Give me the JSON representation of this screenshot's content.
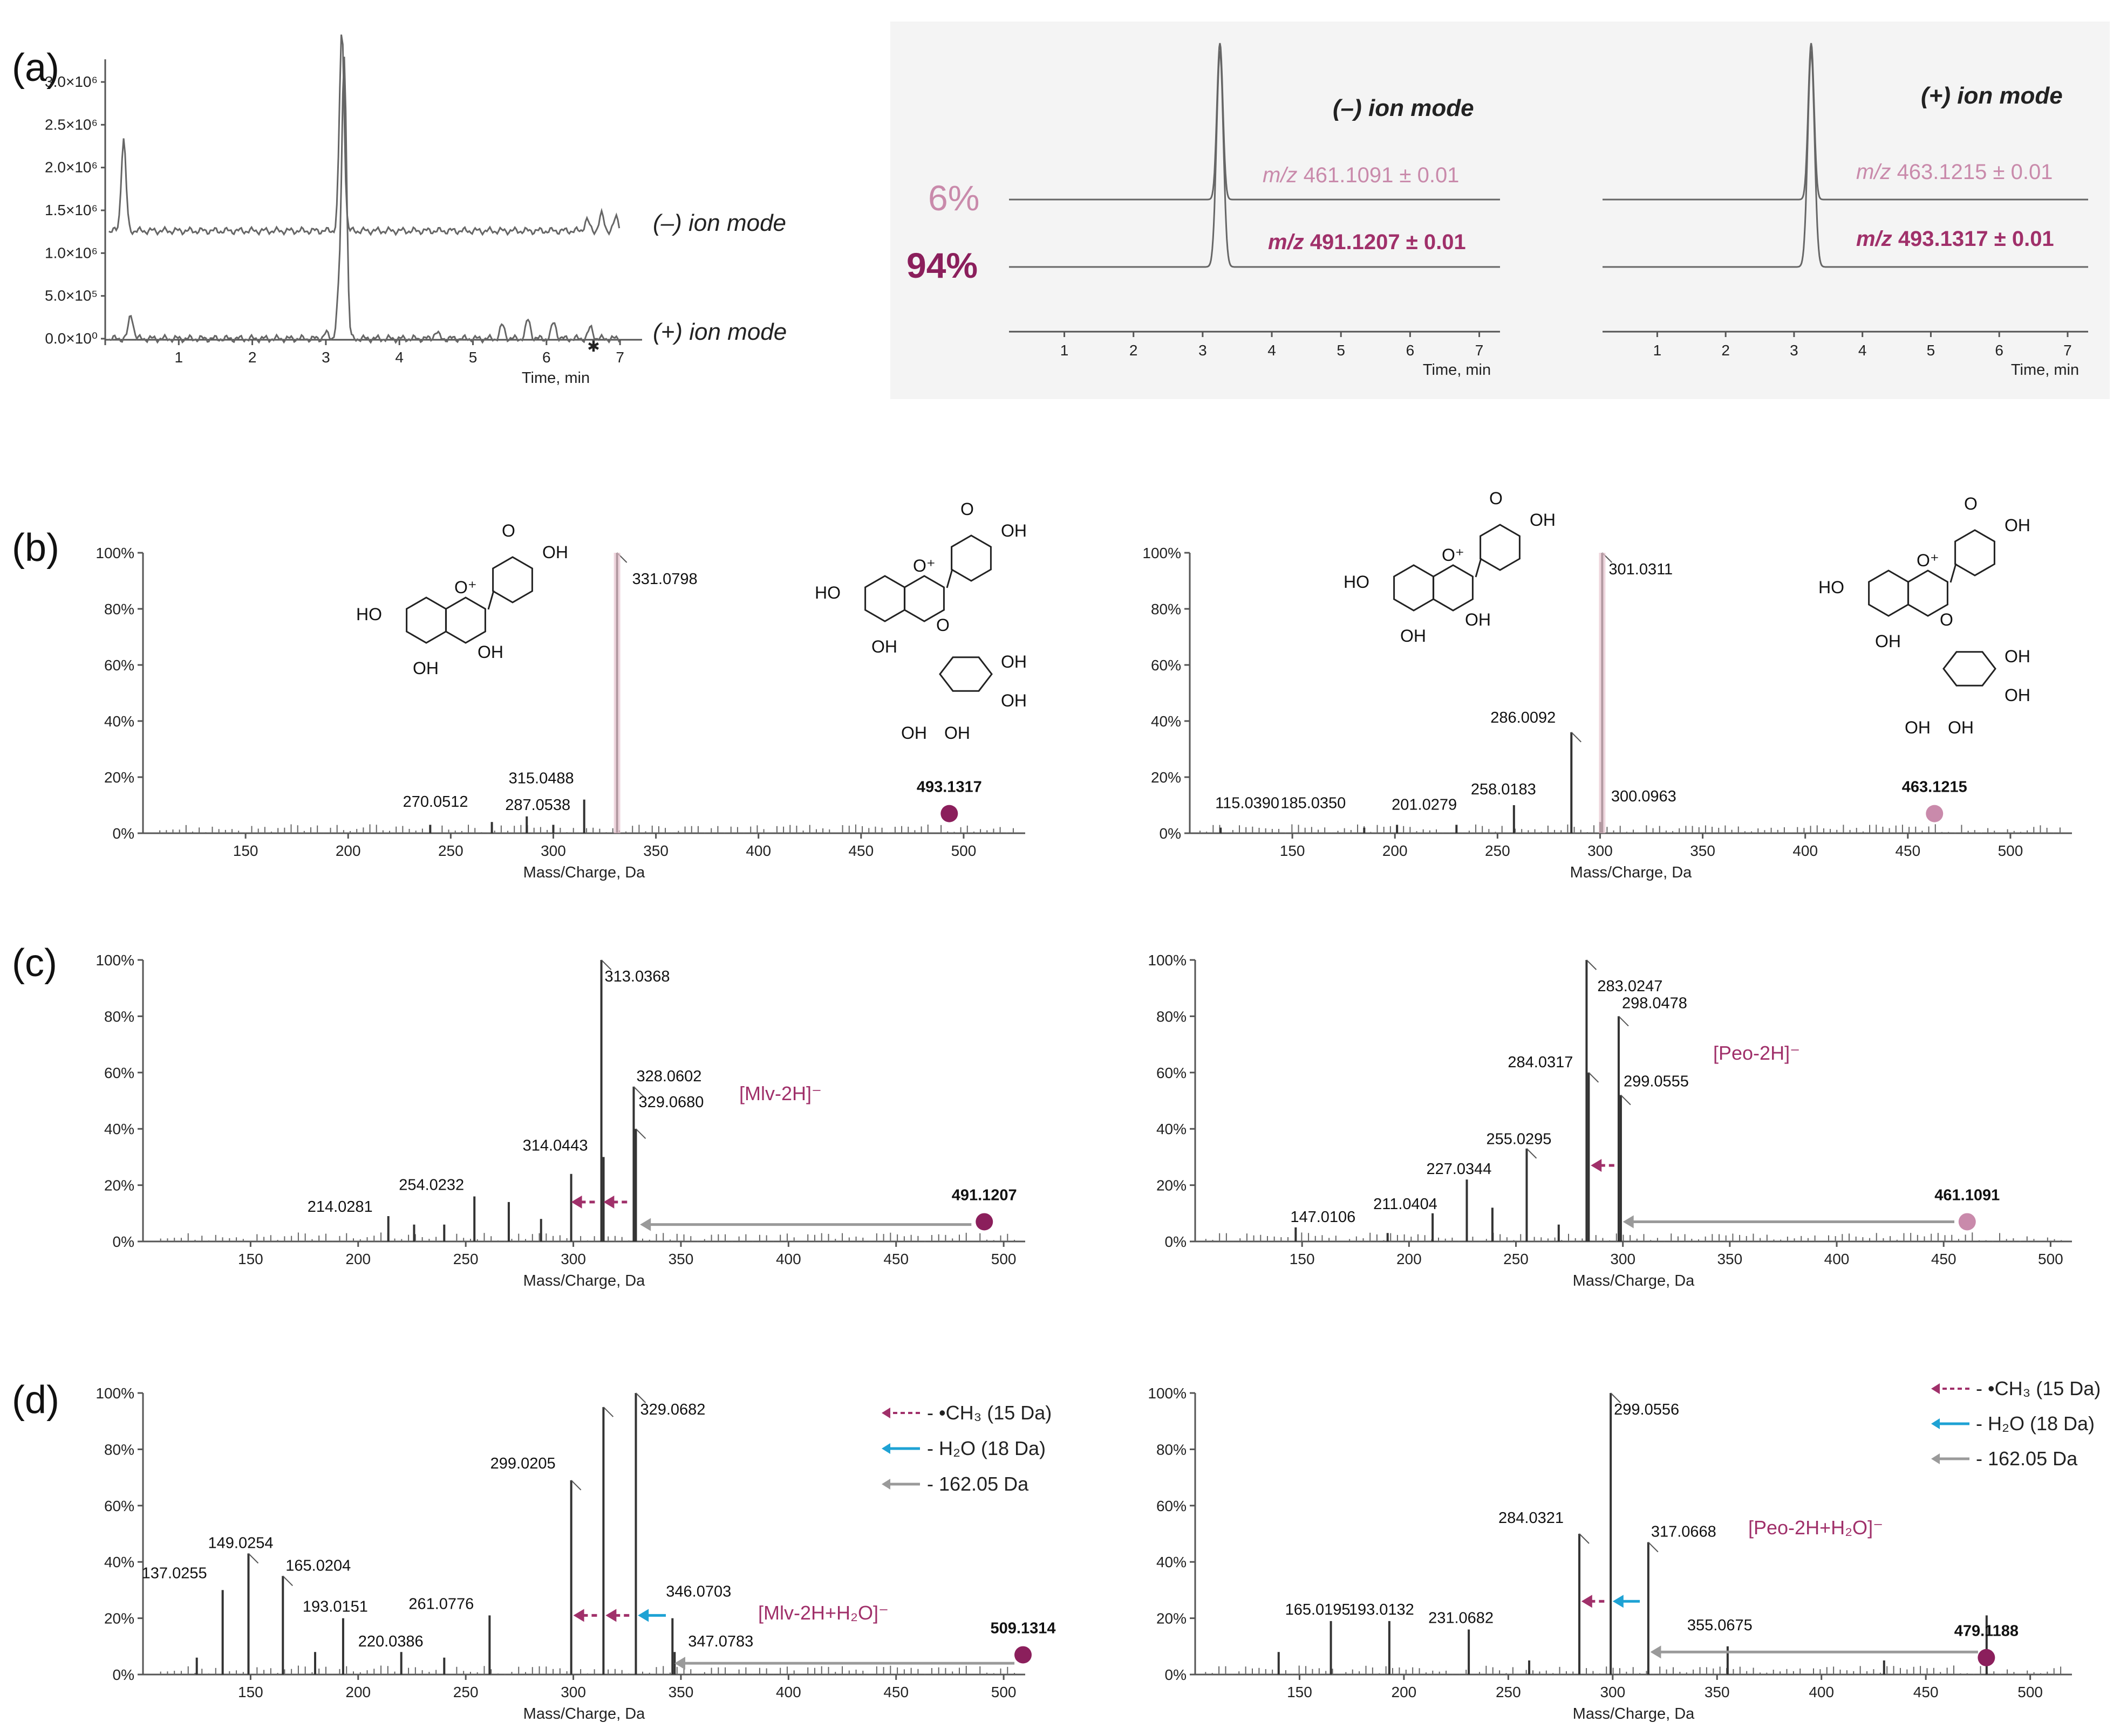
{
  "colors": {
    "magenta": "#a0306a",
    "magenta_dark": "#8b1f5c",
    "pink": "#c98aab",
    "gray": "#9a9a9a",
    "cyan": "#1ea2d4",
    "axis": "#555555"
  },
  "labels": {
    "a": "(a)",
    "b": "(b)",
    "c": "(c)",
    "d": "(d)",
    "neg_mode": "(–) ion mode",
    "pos_mode": "(+) ion mode",
    "time_axis": "Time, min",
    "mass_axis": "Mass/Charge, Da",
    "pct6": "6%",
    "pct94": "94%",
    "mz_prefix": "m/z",
    "neg_eic_top": "461.1091 ± 0.01",
    "neg_eic_bot": "491.1207 ± 0.01",
    "pos_eic_top": "463.1215 ± 0.01",
    "pos_eic_bot": "493.1317 ± 0.01",
    "mlv": "[Mlv-2H]⁻",
    "peo": "[Peo-2H]⁻",
    "mlv_h2o": "[Mlv-2H+H₂O]⁻",
    "peo_h2o": "[Peo-2H+H₂O]⁻",
    "leg_ch3": "- •CH₃ (15 Da)",
    "leg_h2o": "- H₂O (18 Da)",
    "leg_162": "- 162.05 Da",
    "struct_ho": "HO",
    "struct_oh": "OH",
    "struct_o": "O",
    "struct_oplus": "O⁺"
  },
  "chart_data": [
    {
      "id": "a-tic",
      "type": "line",
      "xlabel": "Time, min",
      "x_ticks": [
        1,
        2,
        3,
        4,
        5,
        6,
        7
      ],
      "y_ticks": [
        "0.0×10⁰",
        "5.0×10⁵",
        "1.0×10⁶",
        "1.5×10⁶",
        "2.0×10⁶",
        "2.5×10⁶",
        "3.0×10⁶"
      ],
      "series": [
        {
          "name": "(–) ion mode",
          "peaks": [
            [
              0.25,
              2300000.0
            ],
            [
              3.25,
              3300000.0
            ],
            [
              3.2,
              1600000.0
            ]
          ]
        },
        {
          "name": "(+) ion mode",
          "peaks": [
            [
              0.35,
              450000.0
            ],
            [
              3.25,
              1600000.0
            ]
          ]
        }
      ]
    },
    {
      "id": "a-eic-neg",
      "type": "line",
      "xlabel": "Time, min",
      "x_ticks": [
        1,
        2,
        3,
        4,
        5,
        6,
        7
      ],
      "series": [
        {
          "name": "m/z 461.1091 ± 0.01",
          "percent": "6%"
        },
        {
          "name": "m/z 491.1207 ± 0.01",
          "percent": "94%"
        }
      ],
      "peak_time": 3.25
    },
    {
      "id": "a-eic-pos",
      "type": "line",
      "xlabel": "Time, min",
      "x_ticks": [
        1,
        2,
        3,
        4,
        5,
        6,
        7
      ],
      "series": [
        {
          "name": "m/z 463.1215 ± 0.01"
        },
        {
          "name": "m/z 493.1317 ± 0.01"
        }
      ],
      "peak_time": 3.25
    },
    {
      "id": "b-left",
      "type": "bar",
      "xlabel": "Mass/Charge, Da",
      "xlim": [
        100,
        530
      ],
      "x_ticks": [
        150,
        200,
        250,
        300,
        350,
        400,
        450,
        500
      ],
      "y_ticks": [
        "0%",
        "20%",
        "40%",
        "60%",
        "80%",
        "100%"
      ],
      "peaks": [
        [
          331.0798,
          100
        ],
        [
          315.0488,
          12
        ],
        [
          287.0538,
          6
        ],
        [
          270.0512,
          4
        ],
        [
          240,
          3
        ],
        [
          300,
          3
        ]
      ],
      "labels": [
        "331.0798",
        "315.0488",
        "287.0538",
        "270.0512"
      ],
      "precursor": {
        "mz": "493.1317",
        "x": 493
      }
    },
    {
      "id": "b-right",
      "type": "bar",
      "xlabel": "Mass/Charge, Da",
      "xlim": [
        100,
        530
      ],
      "x_ticks": [
        150,
        200,
        250,
        300,
        350,
        400,
        450,
        500
      ],
      "y_ticks": [
        "0%",
        "20%",
        "40%",
        "60%",
        "80%",
        "100%"
      ],
      "peaks": [
        [
          301.0311,
          100
        ],
        [
          286.0092,
          36
        ],
        [
          258.0183,
          10
        ],
        [
          201.0279,
          3
        ],
        [
          185.035,
          2
        ],
        [
          115.039,
          2
        ],
        [
          300.0963,
          4
        ],
        [
          230,
          3
        ]
      ],
      "labels": [
        "301.0311",
        "286.0092",
        "258.0183",
        "201.0279",
        "185.0350",
        "115.0390",
        "300.0963"
      ],
      "precursor": {
        "mz": "463.1215",
        "x": 463
      }
    },
    {
      "id": "c-left",
      "type": "bar",
      "xlabel": "Mass/Charge, Da",
      "xlim": [
        100,
        510
      ],
      "x_ticks": [
        150,
        200,
        250,
        300,
        350,
        400,
        450,
        500
      ],
      "y_ticks": [
        "0%",
        "20%",
        "40%",
        "60%",
        "80%",
        "100%"
      ],
      "peaks": [
        [
          313.0368,
          100
        ],
        [
          328.0602,
          55
        ],
        [
          329.068,
          40
        ],
        [
          314.0443,
          30
        ],
        [
          299,
          24
        ],
        [
          254.0232,
          16
        ],
        [
          214.0281,
          9
        ],
        [
          270,
          14
        ],
        [
          226,
          6
        ],
        [
          240,
          6
        ],
        [
          285,
          8
        ]
      ],
      "labels": [
        "313.0368",
        "328.0602",
        "329.0680",
        "314.0443",
        "254.0232",
        "214.0281"
      ],
      "precursor": {
        "mz": "491.1207",
        "x": 491
      }
    },
    {
      "id": "c-right",
      "type": "bar",
      "xlabel": "Mass/Charge, Da",
      "xlim": [
        100,
        510
      ],
      "x_ticks": [
        150,
        200,
        250,
        300,
        350,
        400,
        450,
        500
      ],
      "y_ticks": [
        "0%",
        "20%",
        "40%",
        "60%",
        "80%",
        "100%"
      ],
      "peaks": [
        [
          283.0247,
          100
        ],
        [
          298.0478,
          80
        ],
        [
          299.0555,
          52
        ],
        [
          284.0317,
          60
        ],
        [
          255.0295,
          33
        ],
        [
          227.0344,
          22
        ],
        [
          211.0404,
          10
        ],
        [
          147.0106,
          5
        ],
        [
          239,
          12
        ],
        [
          270,
          6
        ],
        [
          190,
          3
        ]
      ],
      "labels": [
        "283.0247",
        "298.0478",
        "299.0555",
        "284.0317",
        "255.0295",
        "227.0344",
        "211.0404",
        "147.0106"
      ],
      "precursor": {
        "mz": "461.1091",
        "x": 461
      }
    },
    {
      "id": "d-left",
      "type": "bar",
      "xlabel": "Mass/Charge, Da",
      "xlim": [
        100,
        510
      ],
      "x_ticks": [
        150,
        200,
        250,
        300,
        350,
        400,
        450,
        500
      ],
      "y_ticks": [
        "0%",
        "20%",
        "40%",
        "60%",
        "80%",
        "100%"
      ],
      "peaks": [
        [
          329.0682,
          100
        ],
        [
          314,
          95
        ],
        [
          299.0205,
          69
        ],
        [
          149.0254,
          43
        ],
        [
          137.0255,
          30
        ],
        [
          165.0204,
          35
        ],
        [
          193.0151,
          20
        ],
        [
          220.0386,
          8
        ],
        [
          261.0776,
          21
        ],
        [
          346.0703,
          20
        ],
        [
          347.0783,
          8
        ],
        [
          180,
          8
        ],
        [
          240,
          6
        ],
        [
          125,
          6
        ]
      ],
      "labels": [
        "329.0682",
        "299.0205",
        "149.0254",
        "137.0255",
        "165.0204",
        "193.0151",
        "220.0386",
        "261.0776",
        "346.0703",
        "347.0783"
      ],
      "precursor": {
        "mz": "509.1314",
        "x": 509
      }
    },
    {
      "id": "d-right",
      "type": "bar",
      "xlabel": "Mass/Charge, Da",
      "xlim": [
        100,
        520
      ],
      "x_ticks": [
        150,
        200,
        250,
        300,
        350,
        400,
        450,
        500
      ],
      "y_ticks": [
        "0%",
        "20%",
        "40%",
        "60%",
        "80%",
        "100%"
      ],
      "peaks": [
        [
          299.0556,
          100
        ],
        [
          284.0321,
          50
        ],
        [
          317.0668,
          47
        ],
        [
          231.0682,
          16
        ],
        [
          193.0132,
          19
        ],
        [
          165.0195,
          19
        ],
        [
          355.0675,
          10
        ],
        [
          479.1188,
          21
        ],
        [
          140,
          8
        ],
        [
          260,
          5
        ],
        [
          430,
          5
        ]
      ],
      "labels": [
        "299.0556",
        "284.0321",
        "317.0668",
        "231.0682",
        "193.0132",
        "165.0195",
        "355.0675",
        "479.1188"
      ],
      "precursor": {
        "mz": "479.1188",
        "x": 479
      }
    }
  ]
}
